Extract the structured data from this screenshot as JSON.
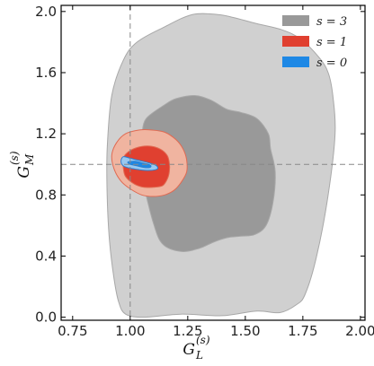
{
  "chart_data": {
    "type": "contour",
    "xlabel": "G",
    "xlabel_sub": "L",
    "xlabel_sup": "(s)",
    "ylabel": "G",
    "ylabel_sub": "M",
    "ylabel_sup": "(s)",
    "xlim": [
      0.7,
      2.02
    ],
    "ylim": [
      -0.02,
      2.04
    ],
    "x_ticks": [
      0.75,
      1.0,
      1.25,
      1.5,
      1.75,
      2.0
    ],
    "x_tick_labels": [
      "0.75",
      "1.00",
      "1.25",
      "1.50",
      "1.75",
      "2.00"
    ],
    "y_ticks": [
      0.0,
      0.4,
      0.8,
      1.2,
      1.6,
      2.0
    ],
    "y_tick_labels": [
      "0.0",
      "0.4",
      "0.8",
      "1.2",
      "1.6",
      "2.0"
    ],
    "reference_lines": {
      "x": 1.0,
      "y": 1.0
    },
    "legend_position": "top-right",
    "series": [
      {
        "name": "s = 3",
        "color": "#999999",
        "light_color": "#d0d0d0",
        "edge_color": "#a8a8a8",
        "regions": [
          {
            "level": "outer",
            "points": [
              [
                0.95,
                0.1
              ],
              [
                0.98,
                0.02
              ],
              [
                1.06,
                0.0
              ],
              [
                1.22,
                0.02
              ],
              [
                1.4,
                0.01
              ],
              [
                1.55,
                0.04
              ],
              [
                1.65,
                0.03
              ],
              [
                1.72,
                0.08
              ],
              [
                1.76,
                0.15
              ],
              [
                1.81,
                0.4
              ],
              [
                1.86,
                0.8
              ],
              [
                1.89,
                1.2
              ],
              [
                1.88,
                1.45
              ],
              [
                1.86,
                1.6
              ],
              [
                1.82,
                1.7
              ],
              [
                1.74,
                1.82
              ],
              [
                1.66,
                1.88
              ],
              [
                1.55,
                1.92
              ],
              [
                1.45,
                1.96
              ],
              [
                1.38,
                1.98
              ],
              [
                1.27,
                1.98
              ],
              [
                1.15,
                1.9
              ],
              [
                1.03,
                1.8
              ],
              [
                0.97,
                1.68
              ],
              [
                0.92,
                1.45
              ],
              [
                0.9,
                1.1
              ],
              [
                0.9,
                0.8
              ],
              [
                0.91,
                0.5
              ],
              [
                0.93,
                0.25
              ]
            ]
          },
          {
            "level": "inner",
            "points": [
              [
                1.1,
                0.62
              ],
              [
                1.14,
                0.48
              ],
              [
                1.22,
                0.43
              ],
              [
                1.3,
                0.45
              ],
              [
                1.36,
                0.49
              ],
              [
                1.42,
                0.52
              ],
              [
                1.48,
                0.53
              ],
              [
                1.54,
                0.54
              ],
              [
                1.59,
                0.6
              ],
              [
                1.62,
                0.75
              ],
              [
                1.63,
                0.95
              ],
              [
                1.61,
                1.1
              ],
              [
                1.6,
                1.2
              ],
              [
                1.55,
                1.3
              ],
              [
                1.48,
                1.34
              ],
              [
                1.42,
                1.36
              ],
              [
                1.35,
                1.42
              ],
              [
                1.28,
                1.45
              ],
              [
                1.2,
                1.43
              ],
              [
                1.15,
                1.39
              ],
              [
                1.07,
                1.3
              ],
              [
                1.05,
                1.2
              ],
              [
                1.03,
                1.1
              ],
              [
                1.03,
                1.0
              ],
              [
                1.06,
                0.85
              ]
            ]
          }
        ]
      },
      {
        "name": "s = 1",
        "color": "#e04030",
        "light_color": "#f0b4a0",
        "edge_color": "#e06a52",
        "regions": [
          {
            "level": "outer",
            "points": [
              [
                1.0,
                0.84
              ],
              [
                1.05,
                0.8
              ],
              [
                1.1,
                0.79
              ],
              [
                1.15,
                0.8
              ],
              [
                1.19,
                0.83
              ],
              [
                1.22,
                0.88
              ],
              [
                1.245,
                0.95
              ],
              [
                1.245,
                1.03
              ],
              [
                1.23,
                1.1
              ],
              [
                1.2,
                1.16
              ],
              [
                1.15,
                1.21
              ],
              [
                1.09,
                1.225
              ],
              [
                1.04,
                1.225
              ],
              [
                0.98,
                1.2
              ],
              [
                0.94,
                1.14
              ],
              [
                0.92,
                1.06
              ],
              [
                0.93,
                0.97
              ],
              [
                0.96,
                0.89
              ]
            ]
          },
          {
            "level": "inner",
            "points": [
              [
                1.02,
                0.87
              ],
              [
                1.06,
                0.85
              ],
              [
                1.1,
                0.85
              ],
              [
                1.14,
                0.86
              ],
              [
                1.16,
                0.9
              ],
              [
                1.17,
                0.95
              ],
              [
                1.17,
                1.01
              ],
              [
                1.16,
                1.06
              ],
              [
                1.13,
                1.1
              ],
              [
                1.08,
                1.12
              ],
              [
                1.03,
                1.11
              ],
              [
                0.99,
                1.08
              ],
              [
                0.97,
                1.04
              ],
              [
                0.97,
                0.98
              ],
              [
                0.98,
                0.92
              ]
            ]
          }
        ]
      },
      {
        "name": "s = 0",
        "color": "#1e88e5",
        "light_color": "#99c8f0",
        "edge_color": "#2a7fd0",
        "regions": [
          {
            "level": "outer",
            "points": [
              [
                0.97,
                1.05
              ],
              [
                0.96,
                1.02
              ],
              [
                0.97,
                0.99
              ],
              [
                1.0,
                0.975
              ],
              [
                1.04,
                0.965
              ],
              [
                1.08,
                0.96
              ],
              [
                1.11,
                0.965
              ],
              [
                1.12,
                0.975
              ],
              [
                1.11,
                0.995
              ],
              [
                1.08,
                1.01
              ],
              [
                1.04,
                1.025
              ],
              [
                1.0,
                1.04
              ]
            ]
          },
          {
            "level": "inner",
            "points": [
              [
                0.99,
                1.015
              ],
              [
                1.0,
                1.0
              ],
              [
                1.03,
                0.99
              ],
              [
                1.06,
                0.98
              ],
              [
                1.085,
                0.98
              ],
              [
                1.09,
                0.99
              ],
              [
                1.08,
                1.0
              ],
              [
                1.05,
                1.01
              ],
              [
                1.02,
                1.02
              ]
            ]
          }
        ]
      }
    ]
  }
}
